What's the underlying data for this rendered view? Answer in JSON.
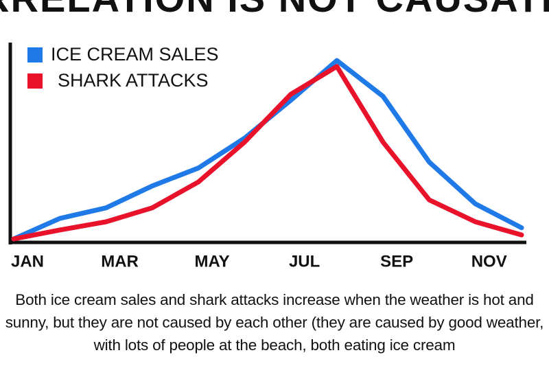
{
  "chart_data": {
    "type": "line",
    "title": "CORRELATION IS NOT CAUSATION!",
    "categories": [
      "JAN",
      null,
      "MAR",
      null,
      "MAY",
      null,
      "JUL",
      null,
      "SEP",
      null,
      "NOV",
      null
    ],
    "series": [
      {
        "name": "ICE CREAM SALES",
        "color": "#1f7ae8",
        "values": [
          1.4,
          11.7,
          17,
          28,
          37,
          52,
          71,
          91,
          73,
          40,
          19,
          7
        ]
      },
      {
        "name": "SHARK ATTACKS",
        "color": "#e8132b",
        "values": [
          1.4,
          5.9,
          10,
          17,
          30,
          50,
          74,
          88,
          50,
          21,
          10,
          3.4
        ]
      }
    ],
    "ylim": [
      0,
      100
    ],
    "legend": "upper left",
    "caption": "Both ice cream sales and shark attacks increase when the weather is hot and sunny, but they are not caused by each other (they are caused by good weather, with lots of people at the beach, both eating ice cream"
  }
}
